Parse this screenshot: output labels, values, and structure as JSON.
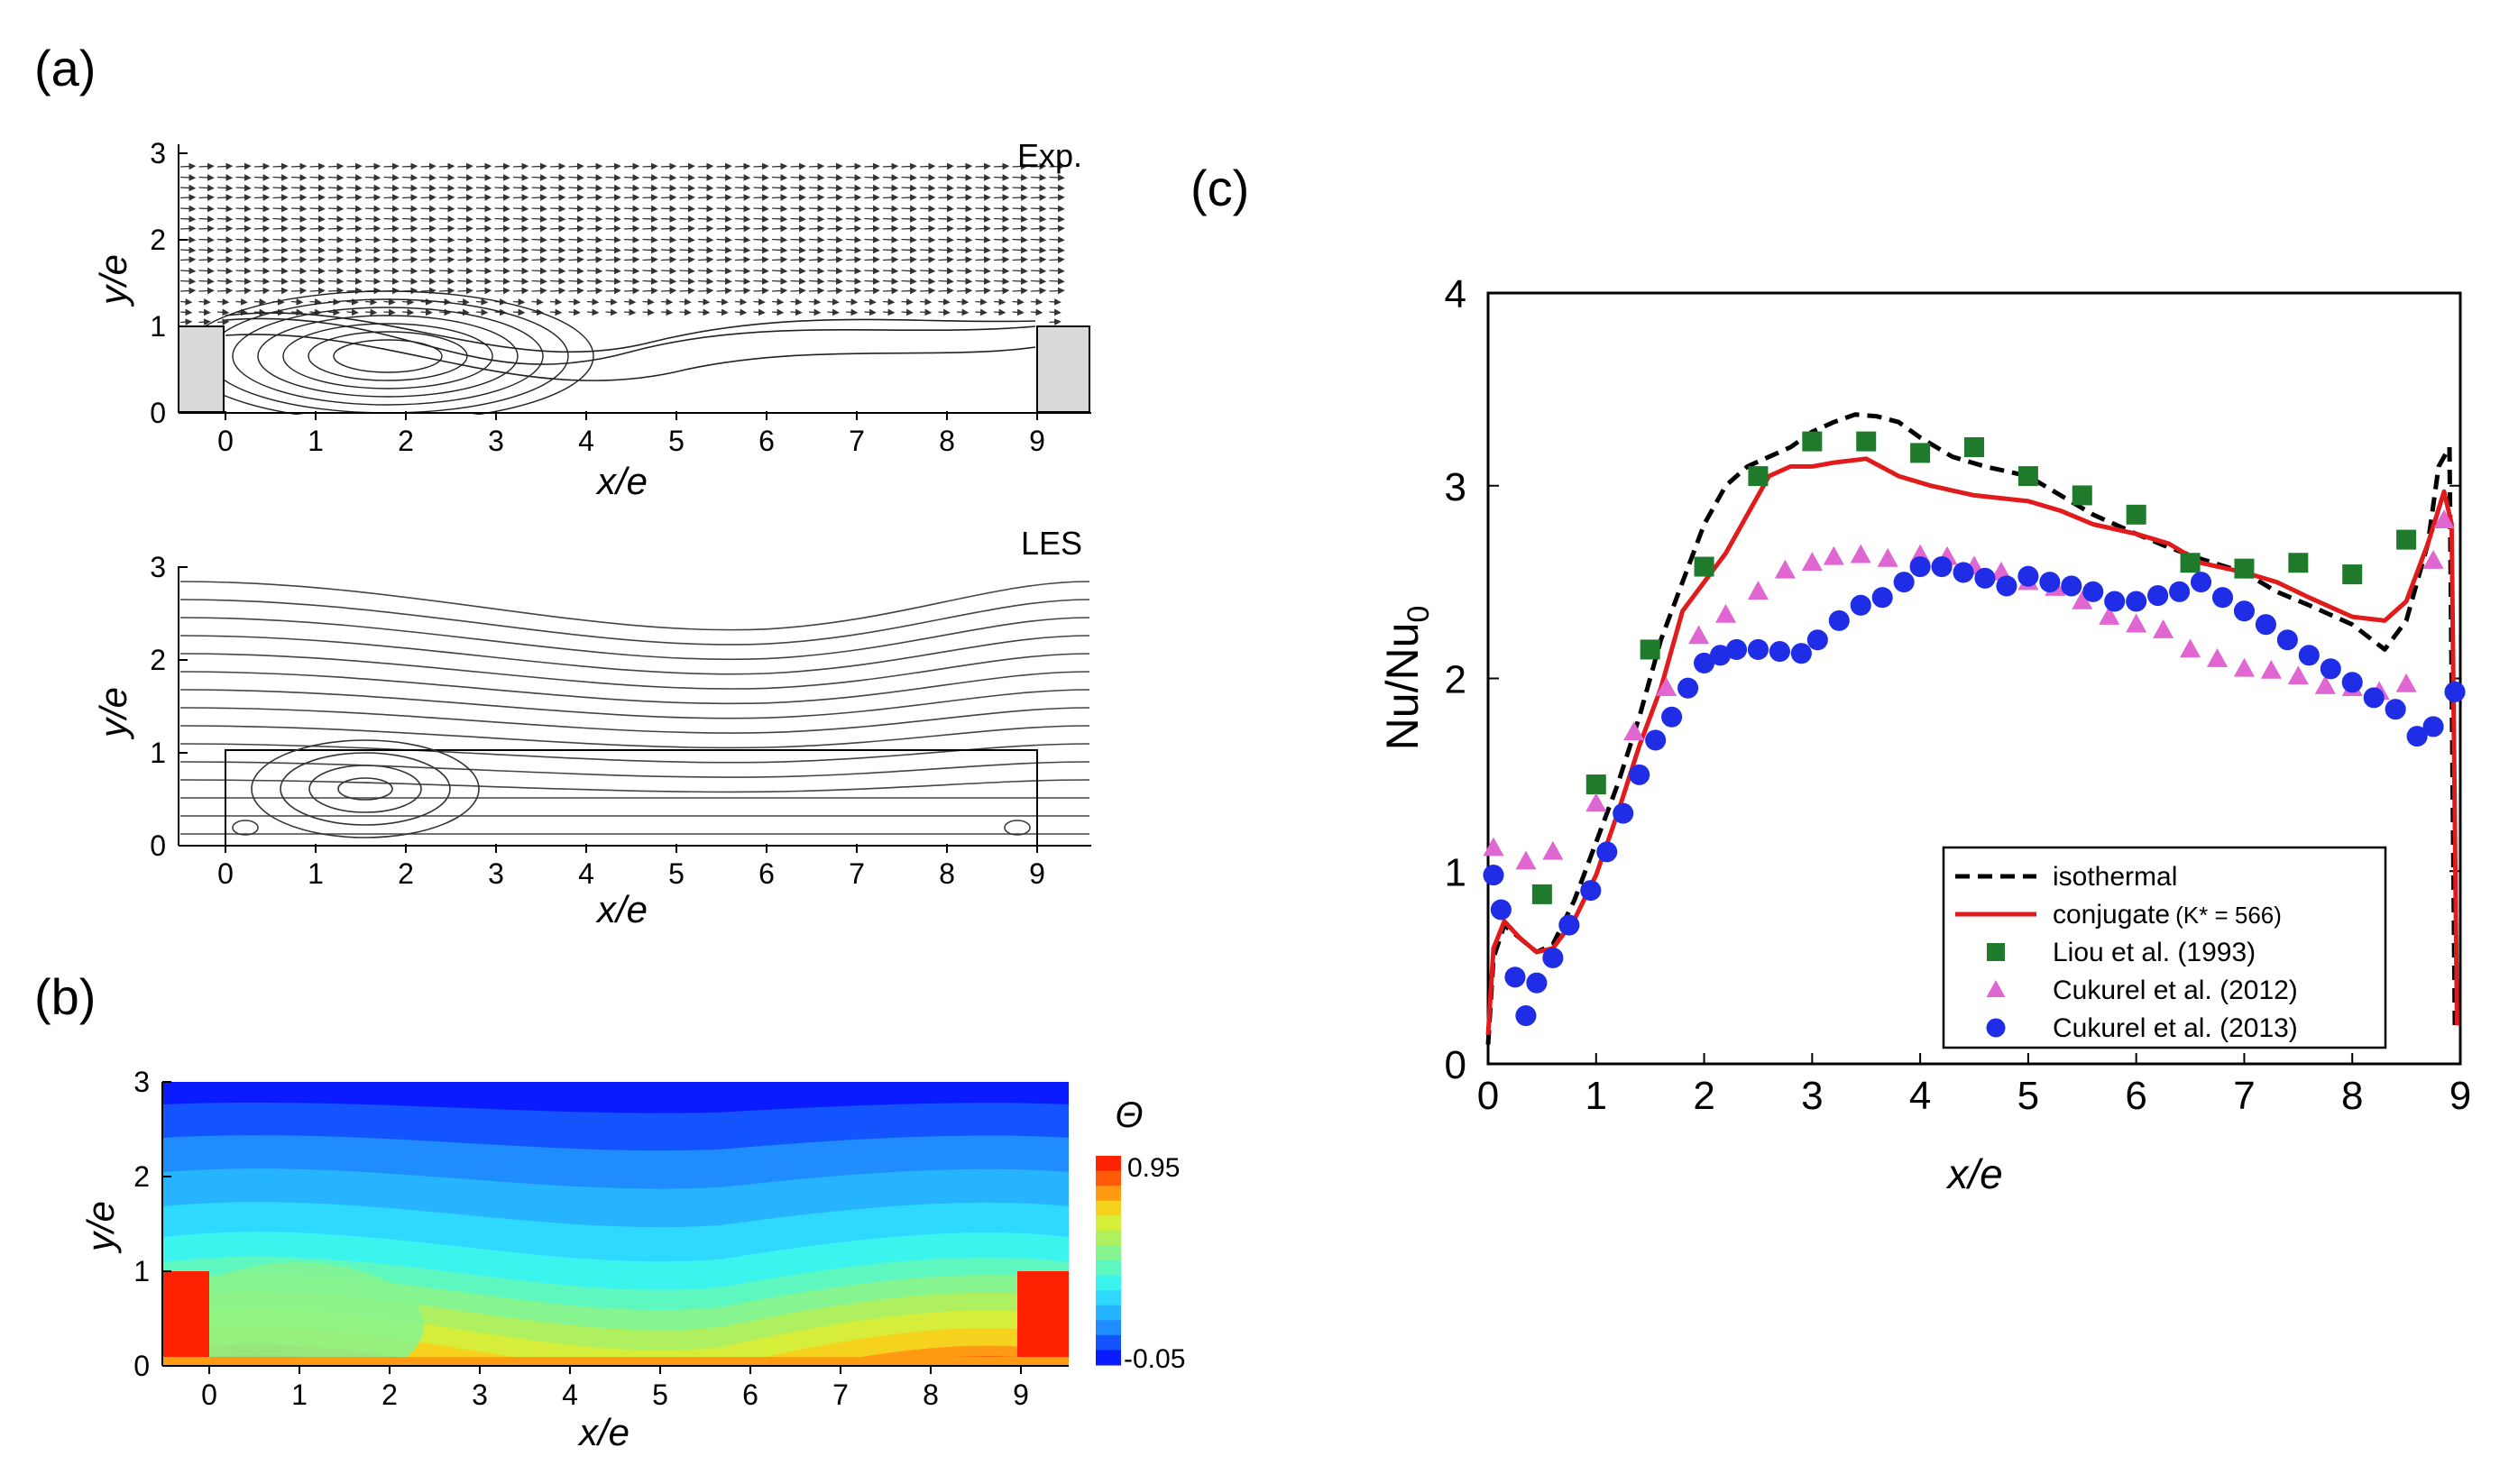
{
  "panels": {
    "a_label": "(a)",
    "b_label": "(b)",
    "c_label": "(c)"
  },
  "panel_a": {
    "exp_title": "Exp.",
    "les_title": "LES",
    "xlabel": "x/e",
    "ylabel": "y/e",
    "x_ticks": [
      "0",
      "1",
      "2",
      "3",
      "4",
      "5",
      "6",
      "7",
      "8",
      "9"
    ],
    "y_ticks": [
      "0",
      "1",
      "2",
      "3"
    ]
  },
  "panel_b": {
    "xlabel": "x/e",
    "ylabel": "y/e",
    "x_ticks": [
      "0",
      "1",
      "2",
      "3",
      "4",
      "5",
      "6",
      "7",
      "8",
      "9"
    ],
    "y_ticks": [
      "0",
      "1",
      "2",
      "3"
    ],
    "colorbar_symbol": "Θ",
    "colorbar_max": "0.95",
    "colorbar_min": "-0.05",
    "colors": [
      "#0a1cff",
      "#1454ff",
      "#1f8cff",
      "#27b4ff",
      "#2fd8ff",
      "#3cf4ee",
      "#5ef7c0",
      "#86f58f",
      "#aef060",
      "#d6ee3a",
      "#f5d21e",
      "#ff9a12",
      "#ff5a0a",
      "#ff2200"
    ]
  },
  "chart_data": {
    "type": "line",
    "xlabel": "x/e",
    "ylabel": "Nu/Nu0",
    "ylabel_main": "Nu/Nu",
    "ylabel_sub": "0",
    "xlim": [
      0,
      9
    ],
    "ylim": [
      0,
      4
    ],
    "x_ticks": [
      "0",
      "1",
      "2",
      "3",
      "4",
      "5",
      "6",
      "7",
      "8",
      "9"
    ],
    "y_ticks": [
      "0",
      "1",
      "2",
      "3",
      "4"
    ],
    "legend_position": "bottom-right",
    "series": [
      {
        "name": "isothermal",
        "style": "dashed-line",
        "color": "#000000",
        "x": [
          0.0,
          0.05,
          0.15,
          0.3,
          0.45,
          0.6,
          0.8,
          1.0,
          1.2,
          1.4,
          1.6,
          1.8,
          2.0,
          2.2,
          2.4,
          2.6,
          2.8,
          3.0,
          3.2,
          3.4,
          3.6,
          3.8,
          4.0,
          4.3,
          4.6,
          5.0,
          5.3,
          5.6,
          6.0,
          6.3,
          6.6,
          7.0,
          7.3,
          7.6,
          8.0,
          8.3,
          8.5,
          8.7,
          8.8,
          8.9,
          8.95
        ],
        "values": [
          0.1,
          0.55,
          0.72,
          0.65,
          0.58,
          0.62,
          0.85,
          1.15,
          1.45,
          1.8,
          2.2,
          2.5,
          2.8,
          3.0,
          3.1,
          3.15,
          3.2,
          3.28,
          3.33,
          3.37,
          3.36,
          3.33,
          3.25,
          3.15,
          3.1,
          3.05,
          2.95,
          2.85,
          2.75,
          2.68,
          2.62,
          2.55,
          2.45,
          2.38,
          2.28,
          2.15,
          2.3,
          2.7,
          3.1,
          3.2,
          0.2
        ]
      },
      {
        "name": "conjugate",
        "name_suffix": "(K* = 566)",
        "style": "line",
        "color": "#e11b1b",
        "x": [
          0.0,
          0.05,
          0.15,
          0.3,
          0.45,
          0.6,
          0.8,
          1.0,
          1.2,
          1.4,
          1.6,
          1.8,
          2.0,
          2.2,
          2.4,
          2.6,
          2.8,
          3.0,
          3.2,
          3.5,
          3.8,
          4.1,
          4.5,
          5.0,
          5.3,
          5.6,
          6.0,
          6.3,
          6.6,
          7.0,
          7.3,
          7.6,
          8.0,
          8.3,
          8.5,
          8.7,
          8.85,
          8.92,
          8.97
        ],
        "values": [
          0.15,
          0.6,
          0.74,
          0.65,
          0.58,
          0.6,
          0.75,
          0.98,
          1.3,
          1.65,
          1.95,
          2.35,
          2.5,
          2.65,
          2.85,
          3.05,
          3.1,
          3.1,
          3.12,
          3.14,
          3.05,
          3.0,
          2.95,
          2.92,
          2.87,
          2.8,
          2.75,
          2.7,
          2.6,
          2.55,
          2.5,
          2.42,
          2.32,
          2.3,
          2.4,
          2.7,
          2.97,
          2.8,
          0.2
        ]
      },
      {
        "name": "Liou et al. (1993)",
        "style": "square",
        "color": "#1f7a2b",
        "x": [
          0.5,
          1.0,
          1.5,
          2.0,
          2.5,
          3.0,
          3.5,
          4.0,
          4.5,
          5.0,
          5.5,
          6.0,
          6.5,
          7.0,
          7.5,
          8.0,
          8.5
        ],
        "values": [
          0.88,
          1.45,
          2.15,
          2.58,
          3.05,
          3.23,
          3.23,
          3.17,
          3.2,
          3.05,
          2.95,
          2.85,
          2.6,
          2.57,
          2.6,
          2.54,
          2.72
        ]
      },
      {
        "name": "Cukurel et al. (2012)",
        "style": "triangle",
        "color": "#e066d1",
        "x": [
          0.05,
          0.35,
          0.6,
          1.0,
          1.35,
          1.65,
          1.95,
          2.2,
          2.5,
          2.75,
          3.0,
          3.2,
          3.45,
          3.7,
          4.0,
          4.25,
          4.5,
          4.75,
          5.0,
          5.25,
          5.5,
          5.75,
          6.0,
          6.25,
          6.5,
          6.75,
          7.0,
          7.25,
          7.5,
          7.75,
          8.0,
          8.25,
          8.5,
          8.75,
          8.85
        ],
        "values": [
          1.12,
          1.05,
          1.1,
          1.35,
          1.72,
          1.95,
          2.22,
          2.33,
          2.45,
          2.56,
          2.6,
          2.63,
          2.64,
          2.62,
          2.64,
          2.63,
          2.58,
          2.55,
          2.5,
          2.47,
          2.4,
          2.32,
          2.28,
          2.25,
          2.15,
          2.1,
          2.05,
          2.04,
          2.01,
          1.96,
          1.95,
          1.93,
          1.97,
          2.61,
          2.82
        ]
      },
      {
        "name": "Cukurel et al. (2013)",
        "style": "circle",
        "color": "#1f2ee6",
        "x": [
          0.05,
          0.12,
          0.25,
          0.35,
          0.45,
          0.6,
          0.75,
          0.95,
          1.1,
          1.25,
          1.4,
          1.55,
          1.7,
          1.85,
          2.0,
          2.15,
          2.3,
          2.5,
          2.7,
          2.9,
          3.05,
          3.25,
          3.45,
          3.65,
          3.85,
          4.0,
          4.2,
          4.4,
          4.6,
          4.8,
          5.0,
          5.2,
          5.4,
          5.6,
          5.8,
          6.0,
          6.2,
          6.4,
          6.6,
          6.8,
          7.0,
          7.2,
          7.4,
          7.6,
          7.8,
          8.0,
          8.2,
          8.4,
          8.6,
          8.75,
          8.95
        ],
        "values": [
          0.98,
          0.8,
          0.45,
          0.25,
          0.42,
          0.55,
          0.72,
          0.9,
          1.1,
          1.3,
          1.5,
          1.68,
          1.8,
          1.95,
          2.08,
          2.12,
          2.15,
          2.15,
          2.14,
          2.13,
          2.2,
          2.3,
          2.38,
          2.42,
          2.5,
          2.58,
          2.58,
          2.55,
          2.52,
          2.48,
          2.53,
          2.5,
          2.48,
          2.45,
          2.4,
          2.4,
          2.43,
          2.45,
          2.5,
          2.42,
          2.35,
          2.28,
          2.2,
          2.12,
          2.05,
          1.98,
          1.9,
          1.84,
          1.7,
          1.75,
          1.93
        ]
      }
    ]
  }
}
